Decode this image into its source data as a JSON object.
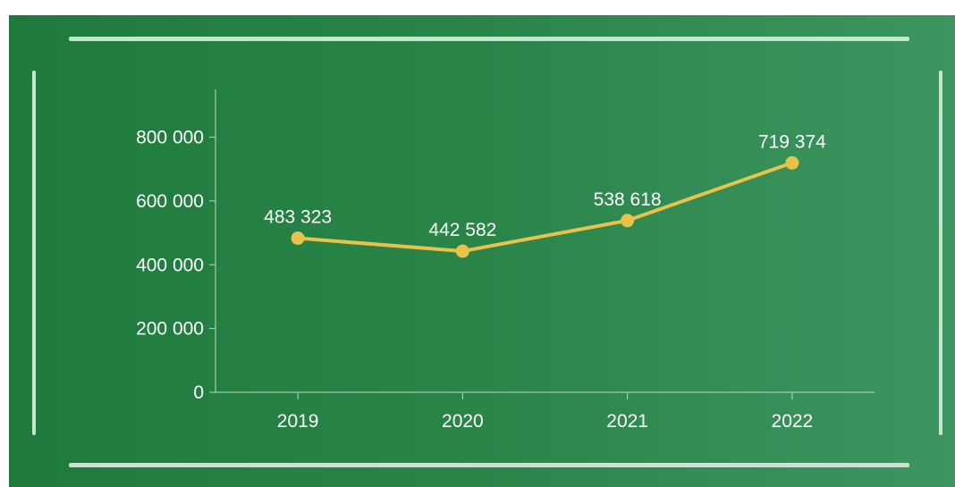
{
  "chart_data": {
    "type": "line",
    "categories": [
      "2019",
      "2020",
      "2021",
      "2022"
    ],
    "series": [
      {
        "values": [
          483323,
          442582,
          538618,
          719374
        ],
        "data_labels": [
          "483 323",
          "442 582",
          "538 618",
          "719 374"
        ]
      }
    ],
    "ylim": [
      0,
      950000
    ],
    "y_ticks": [
      0,
      200000,
      400000,
      600000,
      800000
    ],
    "y_tick_labels": [
      "0",
      "200 000",
      "400 000",
      "600 000",
      "800 000"
    ],
    "grid": false,
    "legend": "none",
    "colors": {
      "line": "#e8c24a",
      "axis": "#b9d9c2",
      "text": "#ffffff",
      "background_start": "#1e7a3c",
      "background_end": "#3d9560",
      "frame": "#c9e3cf"
    }
  }
}
